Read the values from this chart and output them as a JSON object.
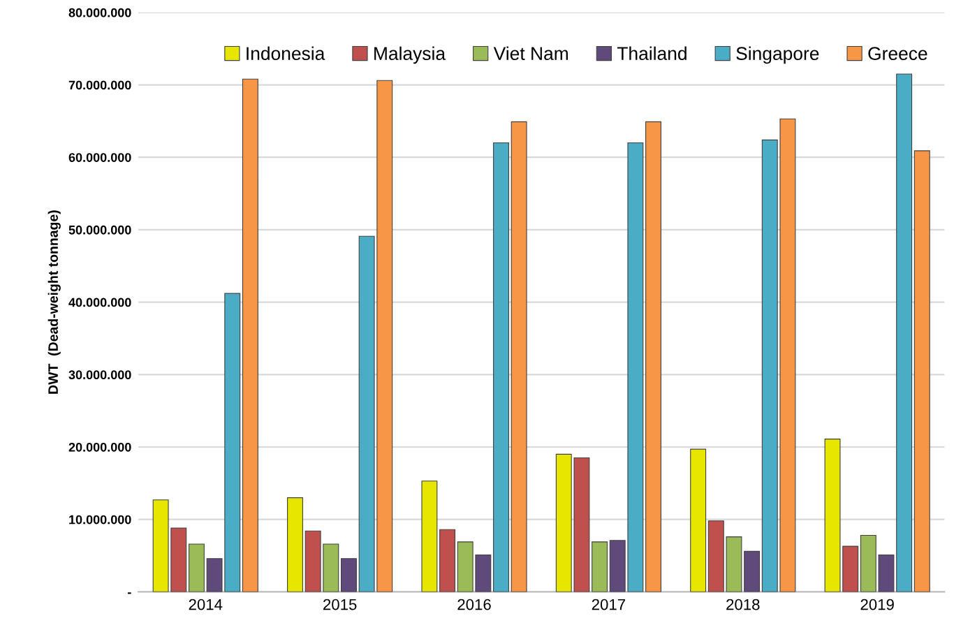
{
  "chart_data": {
    "type": "bar",
    "ylabel": "DWT  (Dead-weight tonnage)",
    "categories": [
      "2014",
      "2015",
      "2016",
      "2017",
      "2018",
      "2019"
    ],
    "series": [
      {
        "name": "Indonesia",
        "color": "#e6e600",
        "values": [
          12700000,
          13000000,
          15300000,
          19000000,
          19700000,
          21100000
        ]
      },
      {
        "name": "Malaysia",
        "color": "#c0504d",
        "values": [
          8800000,
          8400000,
          8600000,
          18500000,
          9800000,
          6300000
        ]
      },
      {
        "name": "Viet Nam",
        "color": "#9bbb59",
        "values": [
          6600000,
          6600000,
          6900000,
          6900000,
          7600000,
          7800000
        ]
      },
      {
        "name": "Thailand",
        "color": "#604a7b",
        "values": [
          4600000,
          4600000,
          5100000,
          7100000,
          5600000,
          5100000
        ]
      },
      {
        "name": "Singapore",
        "color": "#4bacc6",
        "values": [
          41200000,
          49100000,
          62000000,
          62000000,
          62400000,
          71500000
        ]
      },
      {
        "name": "Greece",
        "color": "#f79646",
        "values": [
          70800000,
          70600000,
          64900000,
          64900000,
          65300000,
          60900000
        ]
      }
    ],
    "ylim": [
      0,
      80000000
    ],
    "yticks": [
      {
        "value": 0,
        "label": "-"
      },
      {
        "value": 10000000,
        "label": "10.000.000"
      },
      {
        "value": 20000000,
        "label": "20.000.000"
      },
      {
        "value": 30000000,
        "label": "30.000.000"
      },
      {
        "value": 40000000,
        "label": "40.000.000"
      },
      {
        "value": 50000000,
        "label": "50.000.000"
      },
      {
        "value": 60000000,
        "label": "60.000.000"
      },
      {
        "value": 70000000,
        "label": "70.000.000"
      },
      {
        "value": 80000000,
        "label": "80.000.000"
      }
    ],
    "grid": "y",
    "legend": "top right"
  }
}
